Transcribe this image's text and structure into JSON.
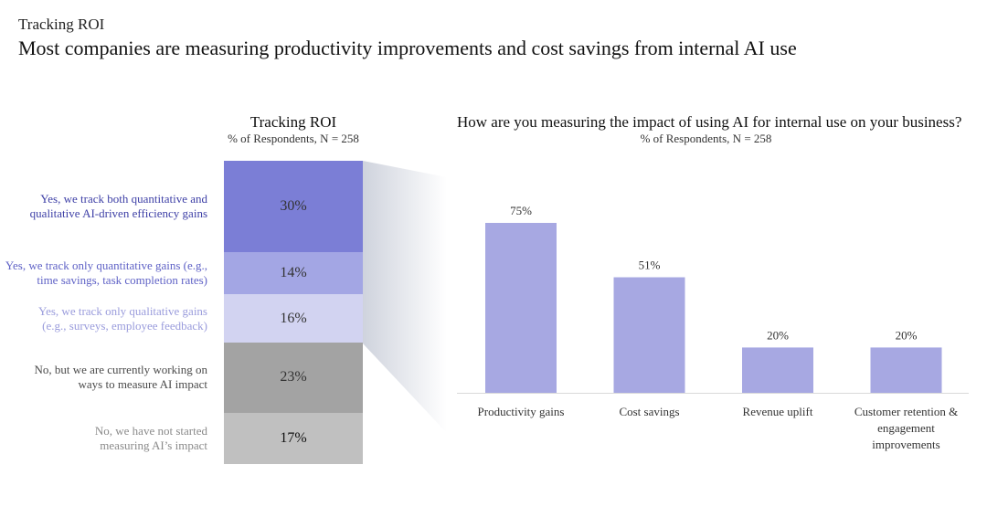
{
  "header": {
    "eyebrow": "Tracking ROI",
    "title": "Most companies are measuring productivity improvements and cost savings from internal AI use"
  },
  "colors": {
    "segment_1": "#7b7ed6",
    "segment_2": "#a3a6e4",
    "segment_3": "#d2d3f1",
    "segment_4": "#a3a3a3",
    "segment_5": "#c0c0c0",
    "bar": "#a7a8e2",
    "funnel": "#e3e6ec",
    "label_1": "#3d3fa6",
    "label_2": "#5f62c6",
    "label_3": "#9a9cdc",
    "label_4": "#4a4a4a",
    "label_5": "#8a8a8a"
  },
  "chart_data": [
    {
      "type": "bar",
      "stacked": true,
      "title": "Tracking ROI",
      "subtitle": "% of Respondents, N = 258",
      "categories": [
        "Yes, we track both quantitative and qualitative AI-driven efficiency gains",
        "Yes, we track only quantitative gains (e.g., time savings, task completion rates)",
        "Yes, we track only qualitative gains (e.g., surveys, employee feedback)",
        "No, but we are currently working on ways to measure AI impact",
        "No, we have not started measuring AI’s impact"
      ],
      "label_lines": [
        [
          "Yes, we track both quantitative and",
          "qualitative AI-driven efficiency gains"
        ],
        [
          "Yes, we track only quantitative gains (e.g.,",
          "time savings, task completion rates)"
        ],
        [
          "Yes, we track only qualitative gains",
          "(e.g., surveys, employee feedback)"
        ],
        [
          "No, but we are currently working on",
          "ways to measure AI impact"
        ],
        [
          "No, we have not started",
          "measuring AI’s impact"
        ]
      ],
      "values": [
        30,
        14,
        16,
        23,
        17
      ],
      "value_labels": [
        "30%",
        "14%",
        "16%",
        "23%",
        "17%"
      ]
    },
    {
      "type": "bar",
      "title": "How are you measuring the impact of using AI for internal use on your business?",
      "subtitle": "% of Respondents, N = 258",
      "categories": [
        "Productivity gains",
        "Cost savings",
        "Revenue uplift",
        "Customer retention & engagement improvements"
      ],
      "category_lines": [
        [
          "Productivity gains"
        ],
        [
          "Cost savings"
        ],
        [
          "Revenue uplift"
        ],
        [
          "Customer retention &",
          "engagement",
          "improvements"
        ]
      ],
      "values": [
        75,
        51,
        20,
        20
      ],
      "value_labels": [
        "75%",
        "51%",
        "20%",
        "20%"
      ],
      "ylim": [
        0,
        100
      ],
      "grid": false
    }
  ]
}
